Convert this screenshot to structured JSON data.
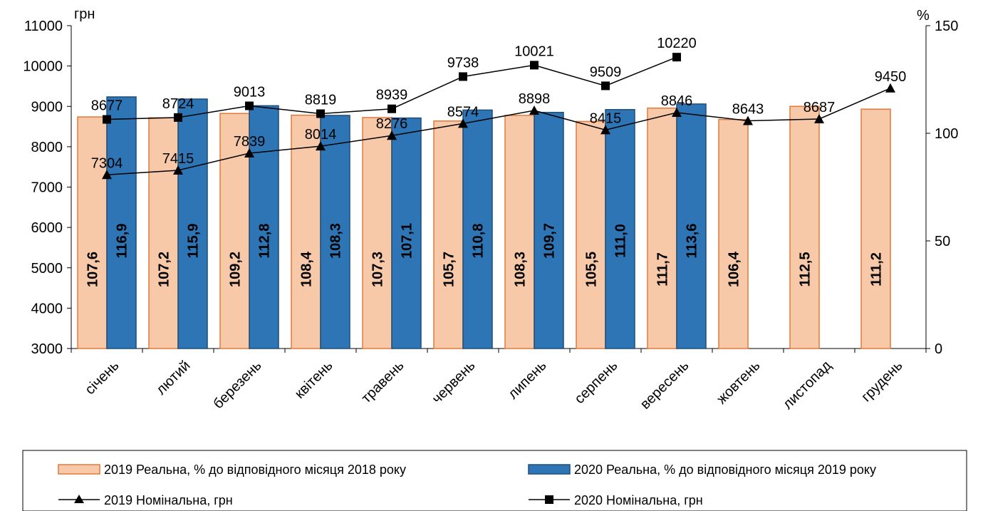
{
  "chart_data": {
    "type": "bar",
    "categories": [
      "січень",
      "лютий",
      "березень",
      "квітень",
      "травень",
      "червень",
      "липень",
      "серпень",
      "вересень",
      "жовтень",
      "листопад",
      "грудень"
    ],
    "y_left": {
      "unit": "грн",
      "min": 3000,
      "max": 11000,
      "ticks": [
        3000,
        4000,
        5000,
        6000,
        7000,
        8000,
        9000,
        10000,
        11000
      ]
    },
    "y_right": {
      "unit": "%",
      "min": 0,
      "max": 150,
      "ticks": [
        0,
        50,
        100,
        150
      ]
    },
    "bar_series": [
      {
        "name": "2019 Реальна, % до відповідного місяця 2018 року",
        "axis": "right",
        "color": "#f8c9a8",
        "stroke": "#e07a3a",
        "values": [
          107.6,
          107.2,
          109.2,
          108.4,
          107.3,
          105.7,
          108.3,
          105.5,
          111.7,
          106.4,
          112.5,
          111.2
        ],
        "labels": [
          "107,6",
          "107,2",
          "109,2",
          "108,4",
          "107,3",
          "105,7",
          "108,3",
          "105,5",
          "111,7",
          "106,4",
          "112,5",
          "111,2"
        ]
      },
      {
        "name": "2020 Реальна, % до відповідного місяця 2019 року",
        "axis": "right",
        "color": "#2e75b6",
        "stroke": "#1f4e79",
        "values": [
          116.9,
          115.9,
          112.8,
          108.3,
          107.1,
          110.8,
          109.7,
          111.0,
          113.6
        ],
        "labels": [
          "116,9",
          "115,9",
          "112,8",
          "108,3",
          "107,1",
          "110,8",
          "109,7",
          "111,0",
          "113,6"
        ]
      }
    ],
    "line_series": [
      {
        "name": "2019 Номінальна, грн",
        "axis": "left",
        "marker": "triangle",
        "color": "#000000",
        "values": [
          7304,
          7415,
          7839,
          8014,
          8276,
          8574,
          8898,
          8415,
          8846,
          8643,
          8687,
          9450
        ],
        "labels": [
          "7304",
          "7415",
          "7839",
          "8014",
          "8276",
          "8574",
          "8898",
          "8415",
          "8846",
          "8643",
          "8687",
          "9450"
        ]
      },
      {
        "name": "2020 Номінальна, грн",
        "axis": "left",
        "marker": "square",
        "color": "#000000",
        "values": [
          8677,
          8724,
          9013,
          8819,
          8939,
          9738,
          10021,
          9509,
          10220
        ],
        "labels": [
          "8677",
          "8724",
          "9013",
          "8819",
          "8939",
          "9738",
          "10021",
          "9509",
          "10220"
        ]
      }
    ],
    "legend_position": "bottom"
  }
}
